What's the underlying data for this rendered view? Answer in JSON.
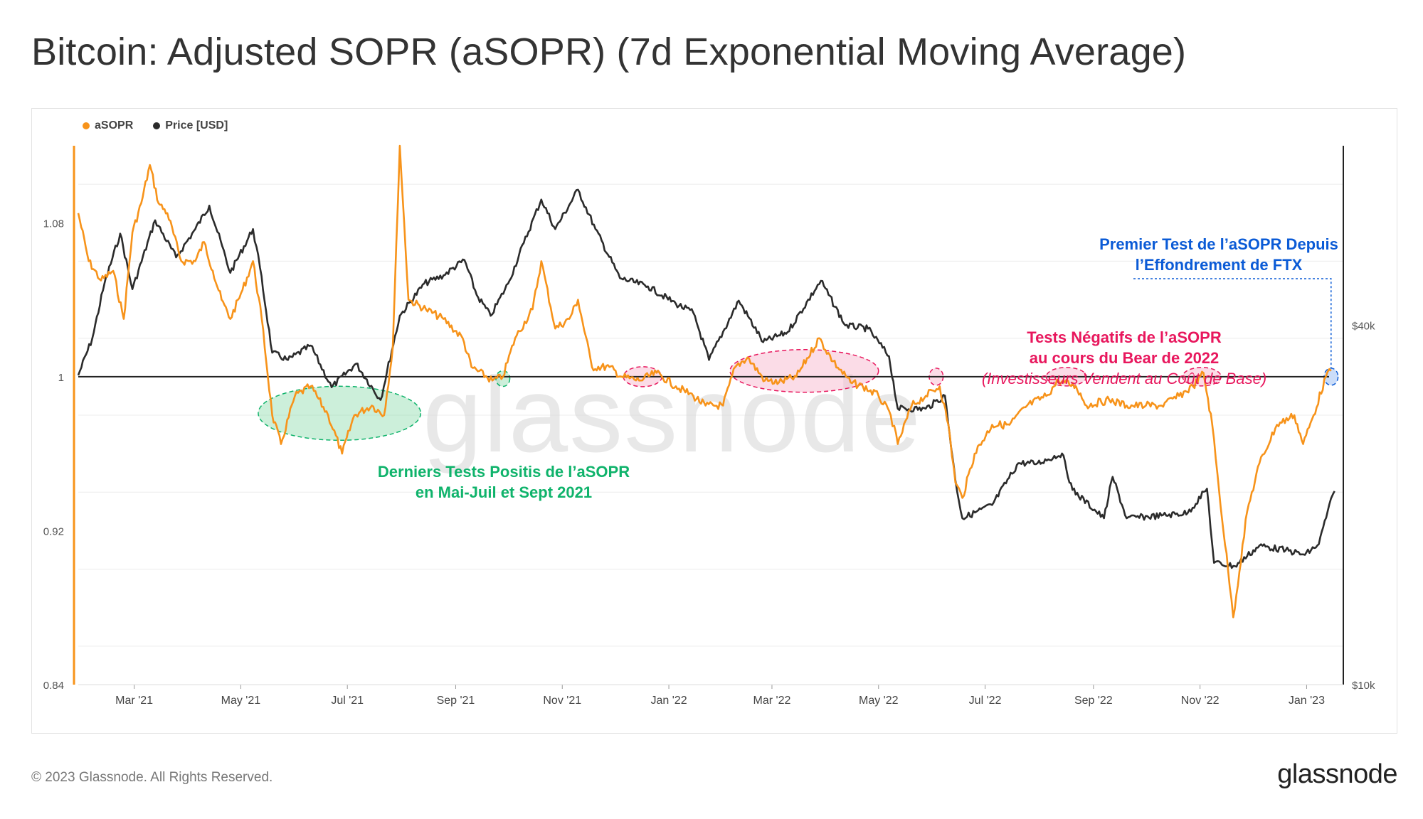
{
  "title": "Bitcoin: Adjusted SOPR (aSOPR) (7d Exponential Moving Average)",
  "footer": {
    "copyright": "© 2023 Glassnode. All Rights Reserved.",
    "logo": "glassnode"
  },
  "watermark": "glassnode",
  "colors": {
    "asopr": "#f7931a",
    "price": "#2b2b2b",
    "green": "#0fb36b",
    "pink": "#e8175d",
    "blue": "#0b5bd6"
  },
  "chart_data": {
    "type": "line",
    "legend": [
      {
        "name": "aSOPR",
        "color": "#f7931a"
      },
      {
        "name": "Price [USD]",
        "color": "#2b2b2b"
      }
    ],
    "x_range": [
      "2021-01-28",
      "2023-01-22"
    ],
    "x_ticks": [
      {
        "date": "2021-03-01",
        "label": "Mar '21"
      },
      {
        "date": "2021-05-01",
        "label": "May '21"
      },
      {
        "date": "2021-07-01",
        "label": "Jul '21"
      },
      {
        "date": "2021-09-01",
        "label": "Sep '21"
      },
      {
        "date": "2021-11-01",
        "label": "Nov '21"
      },
      {
        "date": "2022-01-01",
        "label": "Jan '22"
      },
      {
        "date": "2022-03-01",
        "label": "Mar '22"
      },
      {
        "date": "2022-05-01",
        "label": "May '22"
      },
      {
        "date": "2022-07-01",
        "label": "Jul '22"
      },
      {
        "date": "2022-09-01",
        "label": "Sep '22"
      },
      {
        "date": "2022-11-01",
        "label": "Nov '22"
      },
      {
        "date": "2023-01-01",
        "label": "Jan '23"
      }
    ],
    "y_left": {
      "min": 0.84,
      "max": 1.12,
      "ticks": [
        {
          "value": 0.84,
          "label": "0.84"
        },
        {
          "value": 0.92,
          "label": "0.92"
        },
        {
          "value": 1.0,
          "label": "1"
        },
        {
          "value": 1.08,
          "label": "1.08"
        }
      ]
    },
    "y_right": {
      "scale": "log",
      "min": 10000,
      "max": 80000,
      "ticks": [
        {
          "value": 10000,
          "label": "$10k"
        },
        {
          "value": 40000,
          "label": "$40k"
        }
      ]
    },
    "reference_line": 1.0,
    "series": [
      {
        "name": "aSOPR",
        "axis": "left",
        "points": [
          [
            "2021-01-28",
            1.085
          ],
          [
            "2021-02-03",
            1.06
          ],
          [
            "2021-02-10",
            1.05
          ],
          [
            "2021-02-17",
            1.055
          ],
          [
            "2021-02-23",
            1.03
          ],
          [
            "2021-02-28",
            1.075
          ],
          [
            "2021-03-05",
            1.09
          ],
          [
            "2021-03-10",
            1.11
          ],
          [
            "2021-03-15",
            1.09
          ],
          [
            "2021-03-20",
            1.085
          ],
          [
            "2021-03-28",
            1.06
          ],
          [
            "2021-04-05",
            1.06
          ],
          [
            "2021-04-10",
            1.07
          ],
          [
            "2021-04-15",
            1.055
          ],
          [
            "2021-04-20",
            1.04
          ],
          [
            "2021-04-25",
            1.03
          ],
          [
            "2021-05-02",
            1.045
          ],
          [
            "2021-05-08",
            1.06
          ],
          [
            "2021-05-13",
            1.03
          ],
          [
            "2021-05-19",
            0.98
          ],
          [
            "2021-05-24",
            0.965
          ],
          [
            "2021-06-01",
            0.99
          ],
          [
            "2021-06-10",
            0.995
          ],
          [
            "2021-06-20",
            0.98
          ],
          [
            "2021-06-28",
            0.96
          ],
          [
            "2021-07-05",
            0.98
          ],
          [
            "2021-07-15",
            0.985
          ],
          [
            "2021-07-22",
            0.98
          ],
          [
            "2021-07-27",
            1.015
          ],
          [
            "2021-07-31",
            1.12
          ],
          [
            "2021-08-05",
            1.04
          ],
          [
            "2021-08-15",
            1.035
          ],
          [
            "2021-08-25",
            1.03
          ],
          [
            "2021-09-05",
            1.02
          ],
          [
            "2021-09-10",
            1.005
          ],
          [
            "2021-09-22",
            0.998
          ],
          [
            "2021-09-28",
            1.0
          ],
          [
            "2021-10-05",
            1.02
          ],
          [
            "2021-10-15",
            1.035
          ],
          [
            "2021-10-20",
            1.06
          ],
          [
            "2021-10-28",
            1.025
          ],
          [
            "2021-11-05",
            1.03
          ],
          [
            "2021-11-10",
            1.04
          ],
          [
            "2021-11-18",
            1.005
          ],
          [
            "2021-11-28",
            1.005
          ],
          [
            "2021-12-05",
            1.0
          ],
          [
            "2021-12-15",
            0.998
          ],
          [
            "2021-12-25",
            1.002
          ],
          [
            "2022-01-05",
            0.995
          ],
          [
            "2022-01-15",
            0.99
          ],
          [
            "2022-01-22",
            0.985
          ],
          [
            "2022-02-01",
            0.985
          ],
          [
            "2022-02-08",
            1.005
          ],
          [
            "2022-02-15",
            1.01
          ],
          [
            "2022-02-25",
            0.998
          ],
          [
            "2022-03-05",
            0.997
          ],
          [
            "2022-03-15",
            1.0
          ],
          [
            "2022-03-28",
            1.02
          ],
          [
            "2022-04-05",
            1.008
          ],
          [
            "2022-04-15",
            0.997
          ],
          [
            "2022-04-22",
            0.995
          ],
          [
            "2022-05-01",
            0.99
          ],
          [
            "2022-05-08",
            0.98
          ],
          [
            "2022-05-12",
            0.965
          ],
          [
            "2022-05-20",
            0.985
          ],
          [
            "2022-05-28",
            0.99
          ],
          [
            "2022-06-05",
            0.995
          ],
          [
            "2022-06-10",
            0.975
          ],
          [
            "2022-06-14",
            0.945
          ],
          [
            "2022-06-18",
            0.937
          ],
          [
            "2022-06-25",
            0.96
          ],
          [
            "2022-07-05",
            0.975
          ],
          [
            "2022-07-15",
            0.975
          ],
          [
            "2022-07-25",
            0.985
          ],
          [
            "2022-08-05",
            0.99
          ],
          [
            "2022-08-12",
            0.998
          ],
          [
            "2022-08-22",
            0.995
          ],
          [
            "2022-08-28",
            0.985
          ],
          [
            "2022-09-10",
            0.988
          ],
          [
            "2022-09-20",
            0.985
          ],
          [
            "2022-10-01",
            0.985
          ],
          [
            "2022-10-10",
            0.985
          ],
          [
            "2022-10-20",
            0.99
          ],
          [
            "2022-10-28",
            0.995
          ],
          [
            "2022-11-03",
            1.002
          ],
          [
            "2022-11-08",
            0.975
          ],
          [
            "2022-11-12",
            0.94
          ],
          [
            "2022-11-17",
            0.9
          ],
          [
            "2022-11-20",
            0.875
          ],
          [
            "2022-11-28",
            0.93
          ],
          [
            "2022-12-05",
            0.955
          ],
          [
            "2022-12-15",
            0.975
          ],
          [
            "2022-12-25",
            0.98
          ],
          [
            "2022-12-30",
            0.965
          ],
          [
            "2023-01-05",
            0.98
          ],
          [
            "2023-01-12",
            1.0
          ],
          [
            "2023-01-15",
            1.003
          ]
        ]
      },
      {
        "name": "Price [USD]",
        "axis": "right",
        "points": [
          [
            "2021-01-28",
            33000
          ],
          [
            "2021-02-05",
            38000
          ],
          [
            "2021-02-12",
            47000
          ],
          [
            "2021-02-21",
            57000
          ],
          [
            "2021-02-28",
            46000
          ],
          [
            "2021-03-13",
            60000
          ],
          [
            "2021-03-25",
            52000
          ],
          [
            "2021-04-05",
            58000
          ],
          [
            "2021-04-13",
            63500
          ],
          [
            "2021-04-25",
            49000
          ],
          [
            "2021-05-08",
            58000
          ],
          [
            "2021-05-12",
            50000
          ],
          [
            "2021-05-19",
            36000
          ],
          [
            "2021-05-28",
            35000
          ],
          [
            "2021-06-10",
            37000
          ],
          [
            "2021-06-22",
            31500
          ],
          [
            "2021-07-06",
            34500
          ],
          [
            "2021-07-20",
            30000
          ],
          [
            "2021-07-31",
            41500
          ],
          [
            "2021-08-14",
            47000
          ],
          [
            "2021-08-25",
            48500
          ],
          [
            "2021-09-06",
            51500
          ],
          [
            "2021-09-13",
            45000
          ],
          [
            "2021-09-21",
            41500
          ],
          [
            "2021-10-01",
            47000
          ],
          [
            "2021-10-10",
            55000
          ],
          [
            "2021-10-20",
            65000
          ],
          [
            "2021-10-28",
            58000
          ],
          [
            "2021-11-10",
            67500
          ],
          [
            "2021-11-20",
            58000
          ],
          [
            "2021-12-04",
            48000
          ],
          [
            "2021-12-20",
            46500
          ],
          [
            "2022-01-05",
            43500
          ],
          [
            "2022-01-15",
            42000
          ],
          [
            "2022-01-24",
            35000
          ],
          [
            "2022-02-10",
            44000
          ],
          [
            "2022-02-24",
            37500
          ],
          [
            "2022-03-10",
            39000
          ],
          [
            "2022-03-29",
            47500
          ],
          [
            "2022-04-12",
            40000
          ],
          [
            "2022-04-25",
            39500
          ],
          [
            "2022-05-07",
            35500
          ],
          [
            "2022-05-12",
            29000
          ],
          [
            "2022-05-28",
            29000
          ],
          [
            "2022-06-08",
            30500
          ],
          [
            "2022-06-14",
            22000
          ],
          [
            "2022-06-18",
            19000
          ],
          [
            "2022-07-05",
            20000
          ],
          [
            "2022-07-20",
            23500
          ],
          [
            "2022-07-31",
            23500
          ],
          [
            "2022-08-14",
            24400
          ],
          [
            "2022-08-20",
            21200
          ],
          [
            "2022-09-07",
            19000
          ],
          [
            "2022-09-12",
            22300
          ],
          [
            "2022-09-20",
            19000
          ],
          [
            "2022-10-10",
            19200
          ],
          [
            "2022-10-25",
            19400
          ],
          [
            "2022-11-05",
            21300
          ],
          [
            "2022-11-09",
            16000
          ],
          [
            "2022-11-21",
            15800
          ],
          [
            "2022-12-05",
            17100
          ],
          [
            "2022-12-20",
            16800
          ],
          [
            "2022-12-31",
            16500
          ],
          [
            "2023-01-08",
            17200
          ],
          [
            "2023-01-13",
            19500
          ],
          [
            "2023-01-17",
            21100
          ]
        ]
      }
    ],
    "annotations": [
      {
        "text_lines": [
          "Derniers Tests Positis de l’aSOPR",
          "en Mai-Juil et Sept 2021"
        ],
        "color": "#0fb36b"
      },
      {
        "text_lines": [
          "Tests Négatifs de l’aSOPR",
          "au cours du Bear de 2022",
          "(Investisseurs Vendent au Coût de Base)"
        ],
        "color": "#e8175d"
      },
      {
        "text_lines": [
          "Premier Test de l’aSOPR Depuis",
          "l’Effondrement de FTX"
        ],
        "color": "#0b5bd6"
      }
    ]
  }
}
